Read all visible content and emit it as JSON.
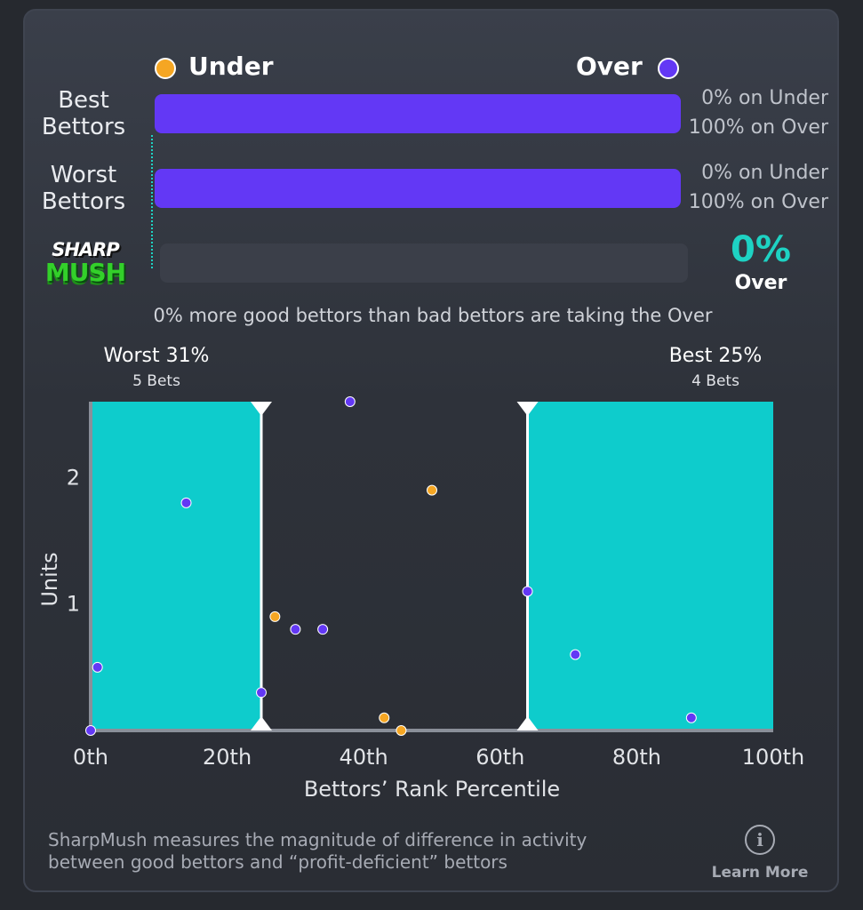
{
  "legend": {
    "under_label": "Under",
    "over_label": "Over"
  },
  "rows": [
    {
      "label_line1": "Best",
      "label_line2": "Bettors",
      "under_text": "0% on Under",
      "over_text": "100% on Over",
      "over_pct": 100
    },
    {
      "label_line1": "Worst",
      "label_line2": "Bettors",
      "under_text": "0% on Under",
      "over_text": "100% on Over",
      "over_pct": 100
    }
  ],
  "logo": {
    "line1": "SHARP",
    "line2": "MUSH"
  },
  "sharpmush": {
    "value": "0%",
    "side": "Over",
    "fill_pct": 0
  },
  "summary_text": "0% more good bettors than bad bettors are taking the Over",
  "groups": {
    "worst_title": "Worst 31%",
    "worst_sub": "5 Bets",
    "best_title": "Best 25%",
    "best_sub": "4 Bets"
  },
  "colors": {
    "under": "#f5a623",
    "over": "#6338f5",
    "teal": "#0ecccc",
    "accent_text": "#1ed2c3"
  },
  "chart_data": {
    "type": "scatter",
    "xlabel": "Bettors’ Rank Percentile",
    "ylabel": "Units",
    "xlim": [
      0,
      100
    ],
    "ylim": [
      0,
      2.6
    ],
    "x_ticks": [
      {
        "value": 0,
        "label": "0th"
      },
      {
        "value": 20,
        "label": "20th"
      },
      {
        "value": 40,
        "label": "40th"
      },
      {
        "value": 60,
        "label": "60th"
      },
      {
        "value": 80,
        "label": "80th"
      },
      {
        "value": 100,
        "label": "100th"
      }
    ],
    "y_ticks": [
      {
        "value": 1,
        "label": "1"
      },
      {
        "value": 2,
        "label": "2"
      }
    ],
    "shaded_regions": [
      {
        "from": 0,
        "to": 25,
        "name": "worst"
      },
      {
        "from": 64,
        "to": 100,
        "name": "best"
      }
    ],
    "series": [
      {
        "name": "Under",
        "points": [
          [
            27,
            0.9
          ],
          [
            43,
            0.1
          ],
          [
            45.5,
            0.0
          ],
          [
            50,
            1.9
          ]
        ]
      },
      {
        "name": "Over",
        "points": [
          [
            0,
            0.0
          ],
          [
            1,
            0.5
          ],
          [
            14,
            1.8
          ],
          [
            25,
            0.3
          ],
          [
            30,
            0.8
          ],
          [
            34,
            0.8
          ],
          [
            38,
            2.6
          ],
          [
            64,
            1.1
          ],
          [
            71,
            0.6
          ],
          [
            88,
            0.1
          ]
        ]
      }
    ]
  },
  "footer": {
    "text_line1": "SharpMush measures the magnitude of difference in activity",
    "text_line2": "between good bettors and “profit-deficient” bettors",
    "learn_more": "Learn More",
    "info_glyph": "i"
  }
}
